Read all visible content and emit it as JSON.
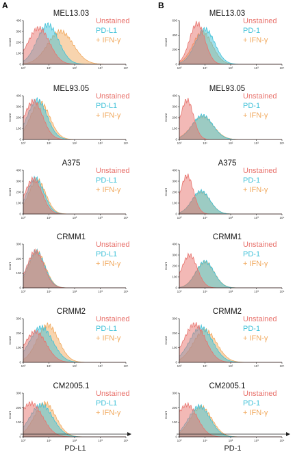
{
  "figure": {
    "panel_letters": [
      "A",
      "B"
    ],
    "y_axis_label": "Count",
    "bottom_labels": [
      "PD-L1",
      "PD-1"
    ],
    "colors": {
      "unstained": "#e8736d",
      "stain": "#3fc1d8",
      "ifn": "#f1a95e"
    }
  },
  "chart_data": [
    {
      "type": "area",
      "panel": "A",
      "title": "MEL13.03",
      "legend": [
        "Unstained",
        "PD-L1",
        "+ IFN-γ"
      ],
      "xscale": "log",
      "xticks": [
        "10⁰",
        "10¹",
        "10²",
        "10³",
        "10⁴"
      ],
      "yticks": [
        "0",
        "100",
        "200",
        "300",
        "400"
      ],
      "ylim": [
        0,
        400
      ],
      "series": [
        {
          "name": "Unstained",
          "peak_x": 4,
          "peak_y": 330,
          "width": 0.42
        },
        {
          "name": "PD-L1",
          "peak_x": 9,
          "peak_y": 360,
          "width": 0.42
        },
        {
          "name": "+ IFN-γ",
          "peak_x": 28,
          "peak_y": 300,
          "width": 0.5
        }
      ]
    },
    {
      "type": "area",
      "panel": "B",
      "title": "MEL13.03",
      "legend": [
        "Unstained",
        "PD-1",
        "+ IFN-γ"
      ],
      "xscale": "log",
      "xticks": [
        "10⁰",
        "10¹",
        "10²",
        "10³",
        "10⁴"
      ],
      "yticks": [
        "0",
        "200",
        "400",
        "600"
      ],
      "ylim": [
        0,
        600
      ],
      "series": [
        {
          "name": "Unstained",
          "peak_x": 5,
          "peak_y": 560,
          "width": 0.3
        },
        {
          "name": "PD-1",
          "peak_x": 10,
          "peak_y": 480,
          "width": 0.38
        },
        {
          "name": "+ IFN-γ",
          "peak_x": 8,
          "peak_y": 440,
          "width": 0.38
        }
      ]
    },
    {
      "type": "area",
      "panel": "A",
      "title": "MEL93.05",
      "legend": [
        "Unstained",
        "PD-L1",
        "+ IFN-γ"
      ],
      "xscale": "log",
      "xticks": [
        "10⁰",
        "10¹",
        "10²",
        "10³",
        "10⁴"
      ],
      "yticks": [
        "0",
        "100",
        "200",
        "300",
        "400"
      ],
      "ylim": [
        0,
        400
      ],
      "series": [
        {
          "name": "Unstained",
          "peak_x": 2.5,
          "peak_y": 350,
          "width": 0.36
        },
        {
          "name": "PD-L1",
          "peak_x": 3.5,
          "peak_y": 360,
          "width": 0.38
        },
        {
          "name": "+ IFN-γ",
          "peak_x": 4.5,
          "peak_y": 340,
          "width": 0.38
        }
      ]
    },
    {
      "type": "area",
      "panel": "B",
      "title": "MEL93.05",
      "legend": [
        "Unstained",
        "PD-1",
        "+ IFN-γ"
      ],
      "xscale": "log",
      "xticks": [
        "10⁰",
        "10¹",
        "10²",
        "10³",
        "10⁴"
      ],
      "yticks": [
        "0",
        "100",
        "200",
        "300",
        "400"
      ],
      "ylim": [
        0,
        400
      ],
      "series": [
        {
          "name": "Unstained",
          "peak_x": 2,
          "peak_y": 360,
          "width": 0.25
        },
        {
          "name": "PD-1",
          "peak_x": 8,
          "peak_y": 220,
          "width": 0.4
        },
        {
          "name": "+ IFN-γ",
          "peak_x": 8,
          "peak_y": 210,
          "width": 0.42
        }
      ]
    },
    {
      "type": "area",
      "panel": "A",
      "title": "A375",
      "legend": [
        "Unstained",
        "PD-L1",
        "+ IFN-γ"
      ],
      "xscale": "log",
      "xticks": [
        "10⁰",
        "10¹",
        "10²",
        "10³",
        "10⁴"
      ],
      "yticks": [
        "0",
        "100",
        "200",
        "300",
        "400"
      ],
      "ylim": [
        0,
        400
      ],
      "series": [
        {
          "name": "Unstained",
          "peak_x": 2.5,
          "peak_y": 320,
          "width": 0.33
        },
        {
          "name": "PD-L1",
          "peak_x": 3,
          "peak_y": 325,
          "width": 0.33
        },
        {
          "name": "+ IFN-γ",
          "peak_x": 3.5,
          "peak_y": 310,
          "width": 0.33
        }
      ]
    },
    {
      "type": "area",
      "panel": "B",
      "title": "A375",
      "legend": [
        "Unstained",
        "PD-1",
        "+ IFN-γ"
      ],
      "xscale": "log",
      "xticks": [
        "10⁰",
        "10¹",
        "10²",
        "10³",
        "10⁴"
      ],
      "yticks": [
        "0",
        "100",
        "200",
        "300",
        "400"
      ],
      "ylim": [
        0,
        400
      ],
      "series": [
        {
          "name": "Unstained",
          "peak_x": 2,
          "peak_y": 350,
          "width": 0.25
        },
        {
          "name": "PD-1",
          "peak_x": 7,
          "peak_y": 210,
          "width": 0.35
        },
        {
          "name": "+ IFN-γ",
          "peak_x": 7,
          "peak_y": 200,
          "width": 0.36
        }
      ]
    },
    {
      "type": "area",
      "panel": "A",
      "title": "CRMM1",
      "legend": [
        "Unstained",
        "PD-L1",
        "+ IFN-γ"
      ],
      "xscale": "log",
      "xticks": [
        "10⁰",
        "10¹",
        "10²",
        "10³",
        "10⁴"
      ],
      "yticks": [
        "0",
        "100",
        "200",
        "300"
      ],
      "ylim": [
        0,
        300
      ],
      "series": [
        {
          "name": "Unstained",
          "peak_x": 3,
          "peak_y": 250,
          "width": 0.33
        },
        {
          "name": "PD-L1",
          "peak_x": 3.2,
          "peak_y": 250,
          "width": 0.33
        },
        {
          "name": "+ IFN-γ",
          "peak_x": 3.4,
          "peak_y": 245,
          "width": 0.33
        }
      ]
    },
    {
      "type": "area",
      "panel": "B",
      "title": "CRMM1",
      "legend": [
        "Unstained",
        "PD-1",
        "+ IFN-γ"
      ],
      "xscale": "log",
      "xticks": [
        "10⁰",
        "10¹",
        "10²",
        "10³",
        "10⁴"
      ],
      "yticks": [
        "0",
        "100",
        "200",
        "300",
        "400"
      ],
      "ylim": [
        0,
        400
      ],
      "series": [
        {
          "name": "Unstained",
          "peak_x": 2.5,
          "peak_y": 300,
          "width": 0.3
        },
        {
          "name": "PD-1",
          "peak_x": 10,
          "peak_y": 240,
          "width": 0.35
        },
        {
          "name": "+ IFN-γ",
          "peak_x": 10,
          "peak_y": 235,
          "width": 0.36
        }
      ]
    },
    {
      "type": "area",
      "panel": "A",
      "title": "CRMM2",
      "legend": [
        "Unstained",
        "PD-L1",
        "+ IFN-γ"
      ],
      "xscale": "log",
      "xticks": [
        "10⁰",
        "10¹",
        "10²",
        "10³",
        "10⁴"
      ],
      "yticks": [
        "0",
        "100",
        "200",
        "300"
      ],
      "ylim": [
        0,
        300
      ],
      "series": [
        {
          "name": "Unstained",
          "peak_x": 3,
          "peak_y": 210,
          "width": 0.42
        },
        {
          "name": "PD-L1",
          "peak_x": 5,
          "peak_y": 240,
          "width": 0.45
        },
        {
          "name": "+ IFN-γ",
          "peak_x": 9,
          "peak_y": 255,
          "width": 0.42
        }
      ]
    },
    {
      "type": "area",
      "panel": "B",
      "title": "CRMM2",
      "legend": [
        "Unstained",
        "PD-1",
        "+ IFN-γ"
      ],
      "xscale": "log",
      "xticks": [
        "10⁰",
        "10¹",
        "10²",
        "10³",
        "10⁴"
      ],
      "yticks": [
        "0",
        "100",
        "200",
        "300"
      ],
      "ylim": [
        0,
        300
      ],
      "series": [
        {
          "name": "Unstained",
          "peak_x": 4,
          "peak_y": 260,
          "width": 0.42
        },
        {
          "name": "PD-1",
          "peak_x": 7,
          "peak_y": 240,
          "width": 0.45
        },
        {
          "name": "+ IFN-γ",
          "peak_x": 10,
          "peak_y": 220,
          "width": 0.45
        }
      ]
    },
    {
      "type": "area",
      "panel": "A",
      "title": "CM2005.1",
      "legend": [
        "Unstained",
        "PD-L1",
        "+ IFN-γ"
      ],
      "xscale": "log",
      "xticks": [
        "10⁰",
        "10¹",
        "10²",
        "10³",
        "10⁴"
      ],
      "yticks": [
        "0",
        "100",
        "200",
        "300"
      ],
      "ylim": [
        0,
        300
      ],
      "series": [
        {
          "name": "Unstained",
          "peak_x": 2,
          "peak_y": 230,
          "width": 0.45
        },
        {
          "name": "PD-L1",
          "peak_x": 5,
          "peak_y": 220,
          "width": 0.45
        },
        {
          "name": "+ IFN-γ",
          "peak_x": 7,
          "peak_y": 230,
          "width": 0.42
        }
      ]
    },
    {
      "type": "area",
      "panel": "B",
      "title": "CM2005.1",
      "legend": [
        "Unstained",
        "PD-1",
        "+ IFN-γ"
      ],
      "xscale": "log",
      "xticks": [
        "10⁰",
        "10¹",
        "10²",
        "10³",
        "10⁴"
      ],
      "yticks": [
        "0",
        "100",
        "200",
        "300"
      ],
      "ylim": [
        0,
        300
      ],
      "series": [
        {
          "name": "Unstained",
          "peak_x": 2,
          "peak_y": 220,
          "width": 0.4
        },
        {
          "name": "PD-1",
          "peak_x": 6,
          "peak_y": 210,
          "width": 0.42
        },
        {
          "name": "+ IFN-γ",
          "peak_x": 7,
          "peak_y": 205,
          "width": 0.42
        }
      ]
    }
  ]
}
